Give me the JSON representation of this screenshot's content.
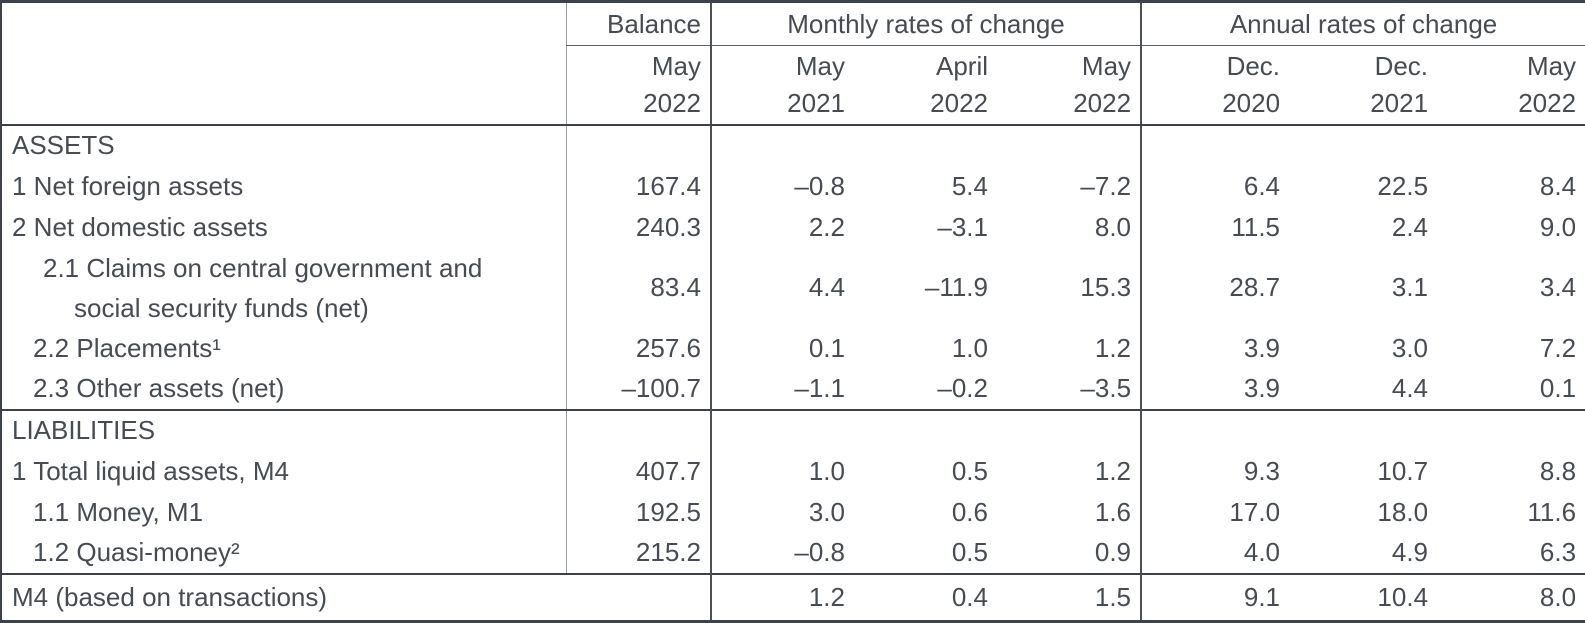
{
  "page": {
    "background": "#ffffff",
    "text_color": "#464c52",
    "border_color": "#3c4248",
    "light_rule_color": "#9aa0a5"
  },
  "table": {
    "column_groups": [
      {
        "label": "Balance",
        "span": 1
      },
      {
        "label": "Monthly rates of change",
        "span": 3
      },
      {
        "label": "Annual rates of change",
        "span": 3
      }
    ],
    "column_headers": [
      {
        "month": "May",
        "year": "2022"
      },
      {
        "month": "May",
        "year": "2021"
      },
      {
        "month": "April",
        "year": "2022"
      },
      {
        "month": "May",
        "year": "2022"
      },
      {
        "month": "Dec.",
        "year": "2020"
      },
      {
        "month": "Dec.",
        "year": "2021"
      },
      {
        "month": "May",
        "year": "2022"
      }
    ],
    "rows": [
      {
        "kind": "section",
        "label": "ASSETS"
      },
      {
        "kind": "item",
        "indent": 0,
        "label": "1 Net foreign assets",
        "values": [
          "167.4",
          "–0.8",
          "5.4",
          "–7.2",
          "6.4",
          "22.5",
          "8.4"
        ]
      },
      {
        "kind": "item",
        "indent": 0,
        "label": "2 Net domestic assets",
        "values": [
          "240.3",
          "2.2",
          "–3.1",
          "8.0",
          "11.5",
          "2.4",
          "9.0"
        ]
      },
      {
        "kind": "item",
        "indent": 1,
        "tall": true,
        "label_lines": [
          "2.1 Claims on central government and",
          "social security funds (net)"
        ],
        "values": [
          "83.4",
          "4.4",
          "–11.9",
          "15.3",
          "28.7",
          "3.1",
          "3.4"
        ]
      },
      {
        "kind": "item",
        "indent": 1,
        "label": "2.2 Placements¹",
        "values": [
          "257.6",
          "0.1",
          "1.0",
          "1.2",
          "3.9",
          "3.0",
          "7.2"
        ]
      },
      {
        "kind": "item",
        "indent": 1,
        "label": "2.3 Other assets (net)",
        "values": [
          "–100.7",
          "–1.1",
          "–0.2",
          "–3.5",
          "3.9",
          "4.4",
          "0.1"
        ]
      },
      {
        "kind": "section",
        "label": "LIABILITIES"
      },
      {
        "kind": "item",
        "indent": 0,
        "label": "1 Total liquid assets, M4",
        "values": [
          "407.7",
          "1.0",
          "0.5",
          "1.2",
          "9.3",
          "10.7",
          "8.8"
        ]
      },
      {
        "kind": "item",
        "indent": 1,
        "label": "1.1 Money, M1",
        "values": [
          "192.5",
          "3.0",
          "0.6",
          "1.6",
          "17.0",
          "18.0",
          "11.6"
        ]
      },
      {
        "kind": "item",
        "indent": 1,
        "label": "1.2 Quasi-money²",
        "values": [
          "215.2",
          "–0.8",
          "0.5",
          "0.9",
          "4.0",
          "4.9",
          "6.3"
        ]
      },
      {
        "kind": "footer",
        "label": "M4 (based on transactions)",
        "values": [
          "1.2",
          "0.4",
          "1.5",
          "9.1",
          "10.4",
          "8.0"
        ]
      }
    ]
  }
}
